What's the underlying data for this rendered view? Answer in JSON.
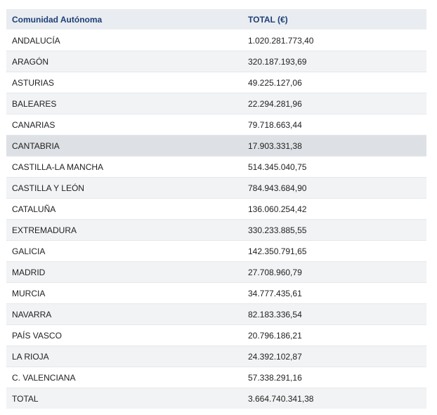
{
  "table": {
    "headers": {
      "community": "Comunidad Autónoma",
      "total": "TOTAL (€)"
    },
    "rows": [
      {
        "community": "ANDALUCÍA",
        "total": "1.020.281.773,40"
      },
      {
        "community": "ARAGÓN",
        "total": "320.187.193,69"
      },
      {
        "community": "ASTURIAS",
        "total": "49.225.127,06"
      },
      {
        "community": "BALEARES",
        "total": "22.294.281,96"
      },
      {
        "community": "CANARIAS",
        "total": "79.718.663,44"
      },
      {
        "community": "CANTABRIA",
        "total": "17.903.331,38"
      },
      {
        "community": "CASTILLA-LA MANCHA",
        "total": "514.345.040,75"
      },
      {
        "community": "CASTILLA Y LEÓN",
        "total": "784.943.684,90"
      },
      {
        "community": "CATALUÑA",
        "total": "136.060.254,42"
      },
      {
        "community": "EXTREMADURA",
        "total": "330.233.885,55"
      },
      {
        "community": "GALICIA",
        "total": "142.350.791,65"
      },
      {
        "community": "MADRID",
        "total": "27.708.960,79"
      },
      {
        "community": "MURCIA",
        "total": "34.777.435,61"
      },
      {
        "community": "NAVARRA",
        "total": "82.183.336,54"
      },
      {
        "community": "PAÍS VASCO",
        "total": "20.796.186,21"
      },
      {
        "community": "LA RIOJA",
        "total": "24.392.102,87"
      },
      {
        "community": "C. VALENCIANA",
        "total": "57.338.291,16"
      }
    ],
    "total_row": {
      "community": "TOTAL",
      "total": "3.664.740.341,38"
    },
    "highlighted_row": "CANTABRIA"
  },
  "colors": {
    "header_bg": "#e9ecf0",
    "header_text": "#1d3f77",
    "row_alt_bg": "#f1f3f5",
    "row_highlight_bg": "#dde0e4"
  }
}
